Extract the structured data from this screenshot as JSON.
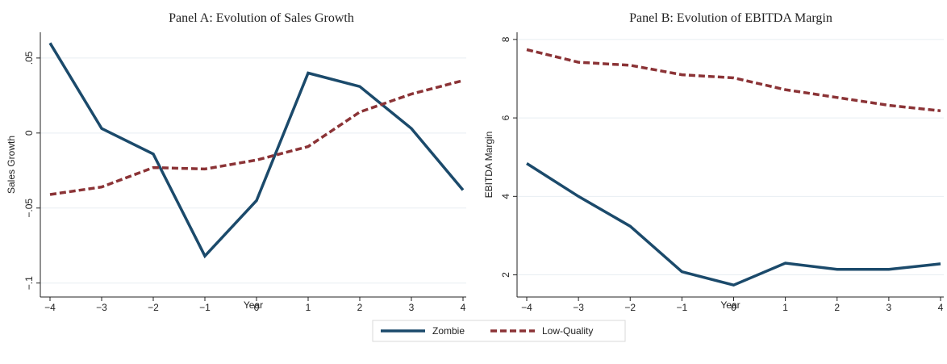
{
  "colors": {
    "zombie": "#1b4a6b",
    "low_quality": "#8b3336",
    "grid": "#e8eef2",
    "axis": "#222222"
  },
  "legend": [
    {
      "label": "Zombie",
      "style": "solid",
      "color": "#1b4a6b"
    },
    {
      "label": "Low-Quality",
      "style": "dashed",
      "color": "#8b3336"
    }
  ],
  "chart_data": [
    {
      "type": "line",
      "title": "Panel A: Evolution of Sales Growth",
      "xlabel": "Year",
      "ylabel": "Sales Growth",
      "x": [
        -4,
        -3,
        -2,
        -1,
        0,
        1,
        2,
        3,
        4
      ],
      "xticks": [
        "−4",
        "−3",
        "−2",
        "−1",
        "0",
        "1",
        "2",
        "3",
        "4"
      ],
      "ylim": [
        -0.105,
        0.065
      ],
      "yticks": [
        {
          "value": -0.1,
          "label": "−.1"
        },
        {
          "value": -0.05,
          "label": "−.05"
        },
        {
          "value": 0,
          "label": "0"
        },
        {
          "value": 0.05,
          "label": ".05"
        }
      ],
      "grid": true,
      "series": [
        {
          "name": "Zombie",
          "style": "solid",
          "values": [
            0.06,
            0.003,
            -0.014,
            -0.082,
            -0.045,
            0.04,
            0.031,
            0.003,
            -0.038
          ]
        },
        {
          "name": "Low-Quality",
          "style": "dashed",
          "values": [
            -0.041,
            -0.036,
            -0.023,
            -0.024,
            -0.018,
            -0.009,
            0.014,
            0.026,
            0.035
          ]
        }
      ]
    },
    {
      "type": "line",
      "title": "Panel B: Evolution of EBITDA Margin",
      "xlabel": "Year",
      "ylabel": "EBITDA Margin",
      "x": [
        -4,
        -3,
        -2,
        -1,
        0,
        1,
        2,
        3,
        4
      ],
      "xticks": [
        "−4",
        "−3",
        "−2",
        "−1",
        "0",
        "1",
        "2",
        "3",
        "4"
      ],
      "ylim": [
        1.6,
        8.1
      ],
      "yticks": [
        {
          "value": 2,
          "label": "2"
        },
        {
          "value": 4,
          "label": "4"
        },
        {
          "value": 6,
          "label": "6"
        },
        {
          "value": 8,
          "label": "8"
        }
      ],
      "grid": true,
      "series": [
        {
          "name": "Zombie",
          "style": "solid",
          "values": [
            4.84,
            4.0,
            3.24,
            2.08,
            1.74,
            2.3,
            2.14,
            2.14,
            2.28
          ]
        },
        {
          "name": "Low-Quality",
          "style": "dashed",
          "values": [
            7.74,
            7.42,
            7.34,
            7.1,
            7.02,
            6.72,
            6.52,
            6.32,
            6.18
          ]
        }
      ]
    }
  ]
}
